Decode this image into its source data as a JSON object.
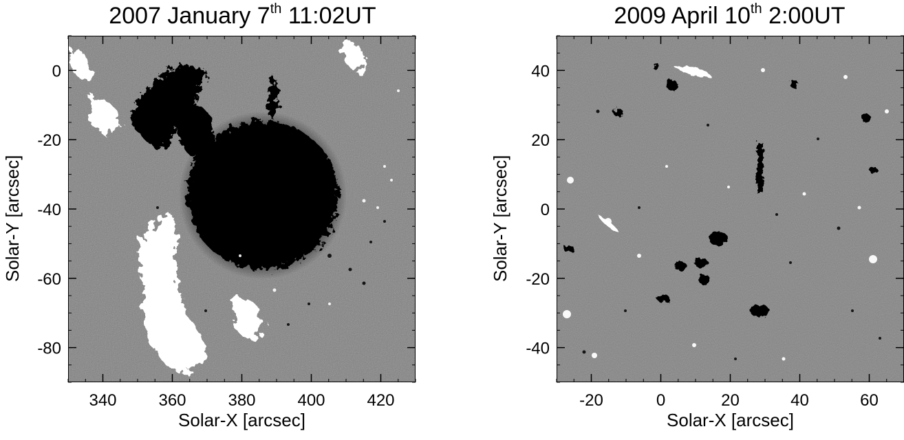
{
  "panels": [
    {
      "title_main": "2007 January 7",
      "title_sup": "th",
      "title_tail": " 11:02UT",
      "xlabel": "Solar-X [arcsec]",
      "ylabel": "Solar-Y [arcsec]",
      "xlim": [
        330,
        430
      ],
      "ylim": [
        -90,
        10
      ],
      "xticks": [
        340,
        360,
        380,
        400,
        420
      ],
      "yticks": [
        0,
        -20,
        -40,
        -60,
        -80
      ]
    },
    {
      "title_main": "2009 April 10",
      "title_sup": "th",
      "title_tail": " 2:00UT",
      "xlabel": "Solar-X [arcsec]",
      "ylabel": "Solar-Y [arcsec]",
      "xlim": [
        -30,
        70
      ],
      "ylim": [
        -50,
        50
      ],
      "xticks": [
        -20,
        0,
        20,
        40,
        60
      ],
      "yticks": [
        40,
        20,
        0,
        -20,
        -40
      ]
    }
  ]
}
